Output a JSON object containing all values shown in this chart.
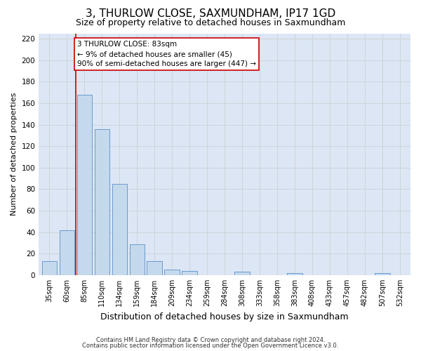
{
  "title": "3, THURLOW CLOSE, SAXMUNDHAM, IP17 1GD",
  "subtitle": "Size of property relative to detached houses in Saxmundham",
  "xlabel": "Distribution of detached houses by size in Saxmundham",
  "ylabel": "Number of detached properties",
  "categories": [
    "35sqm",
    "60sqm",
    "85sqm",
    "110sqm",
    "134sqm",
    "159sqm",
    "184sqm",
    "209sqm",
    "234sqm",
    "259sqm",
    "284sqm",
    "308sqm",
    "333sqm",
    "358sqm",
    "383sqm",
    "408sqm",
    "433sqm",
    "457sqm",
    "482sqm",
    "507sqm",
    "532sqm"
  ],
  "values": [
    13,
    42,
    168,
    136,
    85,
    29,
    13,
    5,
    4,
    0,
    0,
    3,
    0,
    0,
    2,
    0,
    0,
    0,
    0,
    2,
    0
  ],
  "bar_color": "#c5d9ed",
  "bar_edge_color": "#5b8fc9",
  "property_line_color": "#cc0000",
  "annotation_text": "3 THURLOW CLOSE: 83sqm\n← 9% of detached houses are smaller (45)\n90% of semi-detached houses are larger (447) →",
  "annotation_box_color": "#ffffff",
  "annotation_box_edge": "#cc0000",
  "ylim": [
    0,
    225
  ],
  "yticks": [
    0,
    20,
    40,
    60,
    80,
    100,
    120,
    140,
    160,
    180,
    200,
    220
  ],
  "grid_color": "#cccccc",
  "bg_color": "#dce6f5",
  "footer1": "Contains HM Land Registry data © Crown copyright and database right 2024.",
  "footer2": "Contains public sector information licensed under the Open Government Licence v3.0.",
  "title_fontsize": 11,
  "subtitle_fontsize": 9,
  "xlabel_fontsize": 9,
  "ylabel_fontsize": 8,
  "annotation_fontsize": 7.5,
  "footer_fontsize": 6
}
